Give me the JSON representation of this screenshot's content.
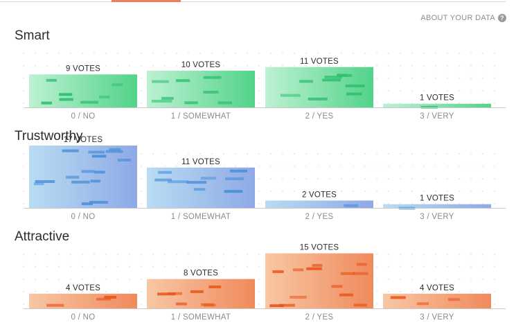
{
  "header": {
    "about_label": "ABOUT YOUR DATA",
    "help_icon": "question-circle-icon"
  },
  "chart_data": [
    {
      "type": "bar",
      "title": "Smart",
      "categories": [
        "0 / NO",
        "1 / SOMEWHAT",
        "2 / YES",
        "3 / VERY"
      ],
      "values": [
        9,
        10,
        11,
        1
      ],
      "value_labels": [
        "9 VOTES",
        "10 VOTES",
        "11 VOTES",
        "1 VOTES"
      ],
      "ylim": [
        0,
        17
      ],
      "colors": {
        "light": "#bdf1d2",
        "dark": "#52d38a",
        "stripe": "#2fbf70"
      }
    },
    {
      "type": "bar",
      "title": "Trustworthy",
      "categories": [
        "0 / NO",
        "1 / SOMEWHAT",
        "2 / YES",
        "3 / VERY"
      ],
      "values": [
        17,
        11,
        2,
        1
      ],
      "value_labels": [
        "17 VOTES",
        "11 VOTES",
        "2 VOTES",
        "1 VOTES"
      ],
      "ylim": [
        0,
        17
      ],
      "colors": {
        "light": "#b9dcf2",
        "dark": "#8ea9e6",
        "stripe": "#4a8fd8"
      }
    },
    {
      "type": "bar",
      "title": "Attractive",
      "categories": [
        "0 / NO",
        "1 / SOMEWHAT",
        "2 / YES",
        "3 / VERY"
      ],
      "values": [
        4,
        8,
        15,
        4
      ],
      "value_labels": [
        "4 VOTES",
        "8 VOTES",
        "15 VOTES",
        "4 VOTES"
      ],
      "ylim": [
        0,
        17
      ],
      "colors": {
        "light": "#f8c7a4",
        "dark": "#f08a5c",
        "stripe": "#e8561d"
      }
    }
  ]
}
